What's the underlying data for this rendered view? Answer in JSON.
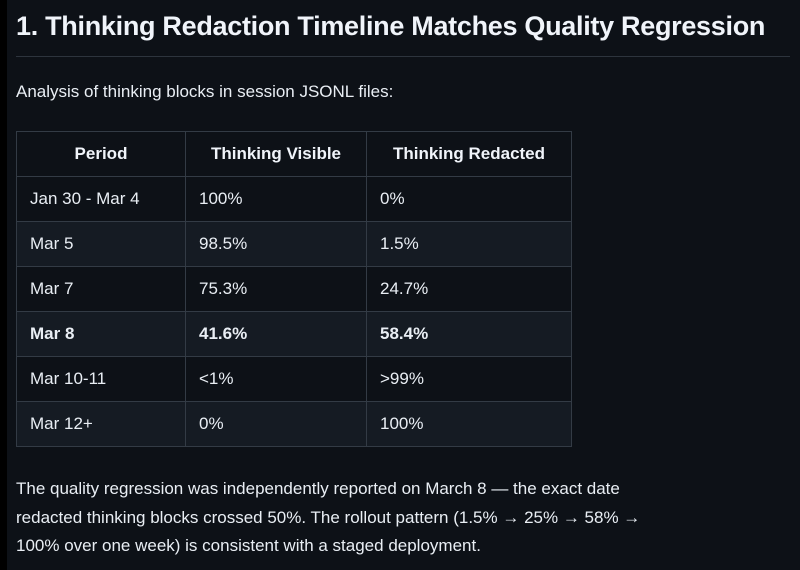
{
  "heading": {
    "text": "1. Thinking Redaction Timeline Matches Quality Regression"
  },
  "intro": {
    "text": "Analysis of thinking blocks in session JSONL files:"
  },
  "table": {
    "columns": [
      "Period",
      "Thinking Visible",
      "Thinking Redacted"
    ],
    "rows": [
      {
        "cells": [
          "Jan 30 - Mar 4",
          "100%",
          "0%"
        ],
        "bold": false
      },
      {
        "cells": [
          "Mar 5",
          "98.5%",
          "1.5%"
        ],
        "bold": false
      },
      {
        "cells": [
          "Mar 7",
          "75.3%",
          "24.7%"
        ],
        "bold": false
      },
      {
        "cells": [
          "Mar 8",
          "41.6%",
          "58.4%"
        ],
        "bold": true
      },
      {
        "cells": [
          "Mar 10-11",
          "<1%",
          ">99%"
        ],
        "bold": false
      },
      {
        "cells": [
          "Mar 12+",
          "0%",
          "100%"
        ],
        "bold": false
      }
    ]
  },
  "conclusion": {
    "lines": [
      "The quality regression was independently reported on March 8 — the exact date",
      "redacted thinking blocks crossed 50%. The rollout pattern (1.5% → 25% → 58% →",
      "100% over one week) is consistent with a staged deployment."
    ]
  },
  "colors": {
    "page_bg": "#0d1117",
    "edge_strip": "#000000",
    "row_stripe": "#151b23",
    "table_border": "#333b45",
    "heading_rule": "#2d343d",
    "text": "#e9eef4",
    "heading_text": "#f0f4fa"
  }
}
